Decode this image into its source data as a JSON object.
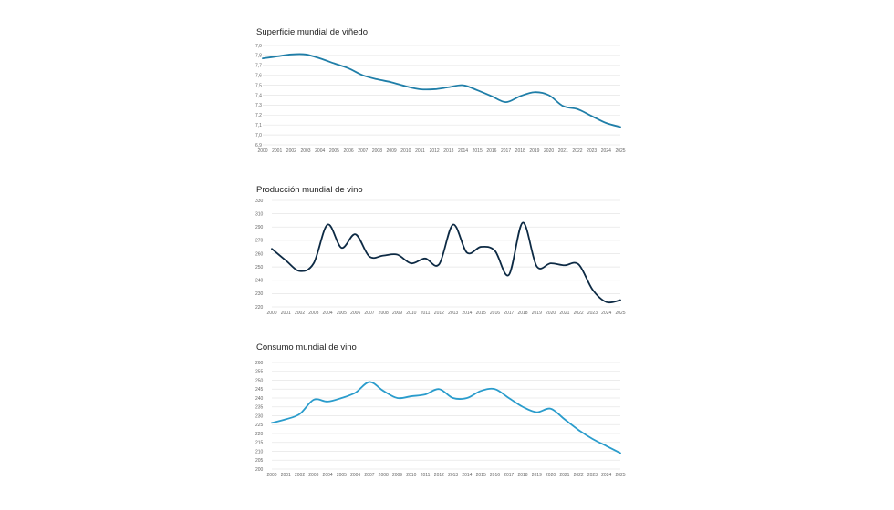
{
  "chart_data": [
    {
      "type": "line",
      "title": "Superficie mundial de viñedo",
      "color": "#1f7ea8",
      "x": [
        "2000",
        "2001",
        "2002",
        "2003",
        "2004",
        "2005",
        "2006",
        "2007",
        "2008",
        "2009",
        "2010",
        "2011",
        "2012",
        "2013",
        "2014",
        "2015",
        "2016",
        "2017",
        "2018",
        "2019",
        "2020",
        "2021",
        "2022",
        "2023",
        "2024",
        "2025"
      ],
      "yticks": [
        "7,9",
        "7,8",
        "7,7",
        "7,6",
        "7,5",
        "7,4",
        "7,3",
        "7,2",
        "7,1",
        "7,0",
        "6,9"
      ],
      "ylim": [
        6.9,
        7.9
      ],
      "values": [
        7.77,
        7.79,
        7.81,
        7.81,
        7.77,
        7.72,
        7.67,
        7.6,
        7.56,
        7.53,
        7.49,
        7.46,
        7.46,
        7.48,
        7.5,
        7.45,
        7.39,
        7.33,
        7.39,
        7.43,
        7.4,
        7.29,
        7.26,
        7.19,
        7.12,
        7.08
      ],
      "grid": true
    },
    {
      "type": "line",
      "title": "Producción mundial de vino",
      "color": "#0d2a44",
      "x": [
        "2000",
        "2001",
        "2002",
        "2003",
        "2004",
        "2005",
        "2006",
        "2007",
        "2008",
        "2009",
        "2010",
        "2011",
        "2012",
        "2013",
        "2014",
        "2015",
        "2016",
        "2017",
        "2018",
        "2019",
        "2020",
        "2021",
        "2022",
        "2023",
        "2024",
        "2025"
      ],
      "yticks": [
        "330",
        "310",
        "290",
        "270",
        "260",
        "250",
        "240",
        "230",
        "220"
      ],
      "ylim": [
        220,
        330
      ],
      "values": [
        280,
        268,
        257,
        265,
        305,
        281,
        295,
        272,
        273,
        274,
        265,
        270,
        264,
        305,
        276,
        282,
        278,
        253,
        307,
        262,
        265,
        263,
        264,
        238,
        225,
        227
      ],
      "grid": true
    },
    {
      "type": "line",
      "title": "Consumo mundial de vino",
      "color": "#2a9ccc",
      "x": [
        "2000",
        "2001",
        "2002",
        "2003",
        "2004",
        "2005",
        "2006",
        "2007",
        "2008",
        "2009",
        "2010",
        "2011",
        "2012",
        "2013",
        "2014",
        "2015",
        "2016",
        "2017",
        "2018",
        "2019",
        "2020",
        "2021",
        "2022",
        "2023",
        "2024",
        "2025"
      ],
      "yticks": [
        "260",
        "255",
        "250",
        "245",
        "240",
        "235",
        "230",
        "225",
        "220",
        "215",
        "210",
        "205",
        "200"
      ],
      "ylim": [
        200,
        260
      ],
      "values": [
        226,
        228,
        231,
        239,
        238,
        240,
        243,
        249,
        244,
        240,
        241,
        242,
        245,
        240,
        240,
        244,
        245,
        240,
        235,
        232,
        234,
        228,
        222,
        217,
        213,
        209
      ],
      "grid": true
    }
  ]
}
